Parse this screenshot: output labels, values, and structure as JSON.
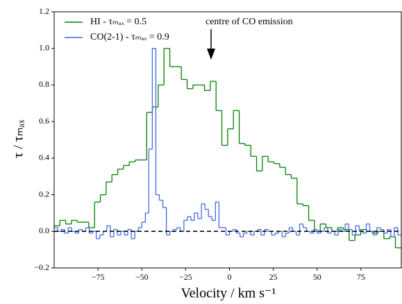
{
  "chart_data": {
    "type": "step",
    "xlabel": "Velocity / km s⁻¹",
    "ylabel": "τ / τₘₐₓ",
    "annotation": "centre of CO emission",
    "legend": "upper left",
    "reference_line": 0,
    "xlim": [
      -100,
      98
    ],
    "ylim": [
      -0.2,
      1.2
    ],
    "xticks": [
      {
        "value": -75,
        "label": "−75"
      },
      {
        "value": -50,
        "label": "−50"
      },
      {
        "value": -25,
        "label": "−25"
      },
      0,
      25,
      50,
      75
    ],
    "yticks": [
      {
        "value": -0.2,
        "label": "−0.2"
      },
      {
        "value": 0,
        "label": "0.0"
      },
      0.2,
      0.4,
      0.6,
      0.8,
      {
        "value": 1,
        "label": "1.0"
      },
      1.2
    ],
    "series": [
      {
        "name": "HI - τₘₐₓ = 0.5",
        "color": "#008000",
        "x": [
          -98.4,
          -95.1,
          -91.8,
          -88.5,
          -85.2,
          -81.9,
          -78.6,
          -75.3,
          -72.0,
          -68.7,
          -65.4,
          -62.1,
          -58.8,
          -55.5,
          -52.2,
          -48.9,
          -45.6,
          -42.3,
          -39.0,
          -35.7,
          -32.4,
          -29.1,
          -25.8,
          -22.5,
          -19.2,
          -15.9,
          -12.6,
          -9.3,
          -6.0,
          -2.7,
          0.6,
          3.9,
          7.2,
          10.5,
          13.8,
          17.1,
          20.4,
          23.7,
          27.0,
          30.3,
          33.6,
          36.9,
          40.2,
          43.5,
          46.8,
          50.1,
          53.4,
          56.7,
          60.0,
          63.3,
          66.6,
          69.9,
          73.2,
          76.5,
          79.8,
          83.1,
          86.4,
          89.7,
          93.0,
          96.3
        ],
        "values": [
          0.03,
          0.06,
          0.04,
          0.06,
          0.05,
          0.05,
          0.02,
          0.16,
          0.2,
          0.27,
          0.31,
          0.34,
          0.36,
          0.38,
          0.39,
          0.39,
          0.65,
          0.68,
          0.8,
          1.0,
          0.9,
          0.9,
          0.83,
          0.78,
          0.8,
          0.8,
          0.77,
          0.82,
          0.66,
          0.47,
          0.56,
          0.66,
          0.48,
          0.47,
          0.41,
          0.33,
          0.41,
          0.38,
          0.37,
          0.35,
          0.31,
          0.29,
          0.15,
          0.14,
          0.06,
          0.0,
          0.04,
          0.02,
          0.0,
          0.02,
          0.01,
          -0.05,
          -0.02,
          0.01,
          0.0,
          -0.01,
          0.0,
          -0.04,
          -0.03,
          -0.09
        ]
      },
      {
        "name": "CO(2-1) - τₘₐₓ = 0.9",
        "color": "#4169e1",
        "x": [
          -99,
          -97,
          -95,
          -93,
          -91,
          -89,
          -87,
          -85,
          -83,
          -81,
          -79,
          -77,
          -75,
          -73,
          -71,
          -69,
          -67,
          -65,
          -63,
          -61,
          -59,
          -57,
          -55,
          -53,
          -51,
          -49,
          -47,
          -45,
          -43,
          -41,
          -39,
          -37,
          -35,
          -33,
          -31,
          -29,
          -27,
          -25,
          -23,
          -21,
          -19,
          -17,
          -15,
          -13,
          -11,
          -9,
          -7,
          -5,
          -3,
          -1,
          1,
          3,
          5,
          7,
          9,
          11,
          13,
          15,
          17,
          19,
          21,
          23,
          25,
          27,
          29,
          31,
          33,
          35,
          37,
          39,
          41,
          43,
          45,
          47,
          49,
          51,
          53,
          55,
          57,
          59,
          61,
          63,
          65,
          67,
          69,
          71,
          73,
          75,
          77,
          79,
          81,
          83,
          85,
          87,
          89,
          91,
          93,
          95,
          97
        ],
        "values": [
          0.02,
          0.0,
          0.01,
          -0.01,
          0.02,
          0.0,
          -0.01,
          0.01,
          0.0,
          0.02,
          -0.01,
          0.0,
          -0.04,
          -0.02,
          0.0,
          0.03,
          -0.03,
          0.01,
          -0.02,
          0.0,
          -0.02,
          0.01,
          -0.04,
          0.0,
          0.02,
          0.05,
          0.1,
          0.45,
          1.0,
          0.2,
          0.17,
          0.13,
          -0.02,
          0.0,
          0.01,
          0.02,
          0.0,
          0.06,
          0.08,
          0.06,
          0.1,
          0.07,
          0.15,
          0.12,
          0.08,
          0.06,
          0.16,
          0.02,
          0.02,
          -0.02,
          0.0,
          0.01,
          -0.01,
          -0.03,
          -0.01,
          0.0,
          -0.02,
          0.0,
          0.01,
          -0.02,
          0.01,
          0.0,
          -0.02,
          -0.01,
          0.0,
          -0.03,
          -0.01,
          0.02,
          0.0,
          -0.02,
          0.04,
          0.02,
          0.0,
          -0.01,
          0.01,
          -0.01,
          0.0,
          0.02,
          -0.01,
          0.0,
          -0.02,
          0.01,
          0.0,
          0.04,
          0.01,
          -0.02,
          0.03,
          0.0,
          -0.01,
          0.04,
          0.0,
          -0.02,
          0.02,
          0.01,
          -0.01,
          0.01,
          -0.03,
          0.02,
          -0.02
        ]
      }
    ]
  }
}
